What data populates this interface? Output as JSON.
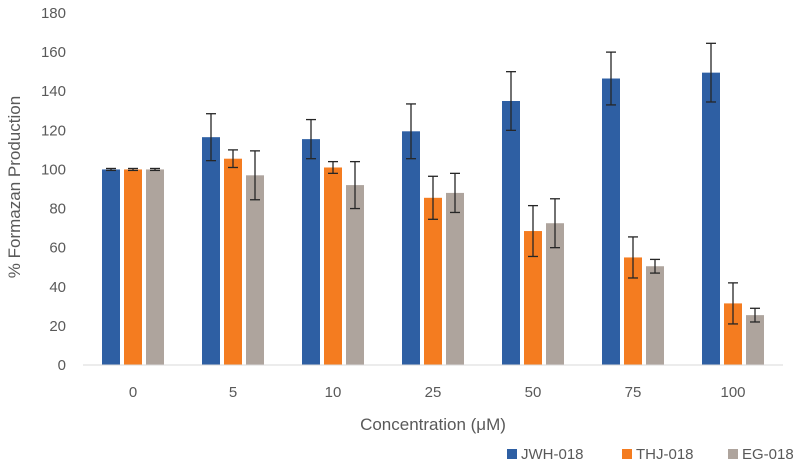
{
  "chart_data": {
    "type": "bar",
    "title": "",
    "xlabel": "Concentration (μM)",
    "ylabel": "% Formazan Production",
    "categories": [
      "0",
      "5",
      "10",
      "25",
      "50",
      "75",
      "100"
    ],
    "ylim": [
      0,
      180
    ],
    "yticks": [
      0,
      20,
      40,
      60,
      80,
      100,
      120,
      140,
      160,
      180
    ],
    "grid": false,
    "legend_position": "bottom-right",
    "series": [
      {
        "name": "JWH-018",
        "color": "#2e5fa3",
        "values": [
          100,
          116.5,
          115.5,
          119.5,
          135,
          146.5,
          149.5
        ],
        "errors": [
          0.5,
          12,
          10,
          14,
          15,
          13.5,
          15
        ]
      },
      {
        "name": "THJ-018",
        "color": "#f47c20",
        "values": [
          100,
          105.5,
          101,
          85.5,
          68.5,
          55,
          31.5
        ],
        "errors": [
          0.5,
          4.5,
          3,
          11,
          13,
          10.5,
          10.5
        ]
      },
      {
        "name": "EG-018",
        "color": "#aea49d",
        "values": [
          100,
          97,
          92,
          88,
          72.5,
          50.5,
          25.5
        ],
        "errors": [
          0.5,
          12.5,
          12,
          10,
          12.5,
          3.5,
          3.5
        ]
      }
    ]
  }
}
